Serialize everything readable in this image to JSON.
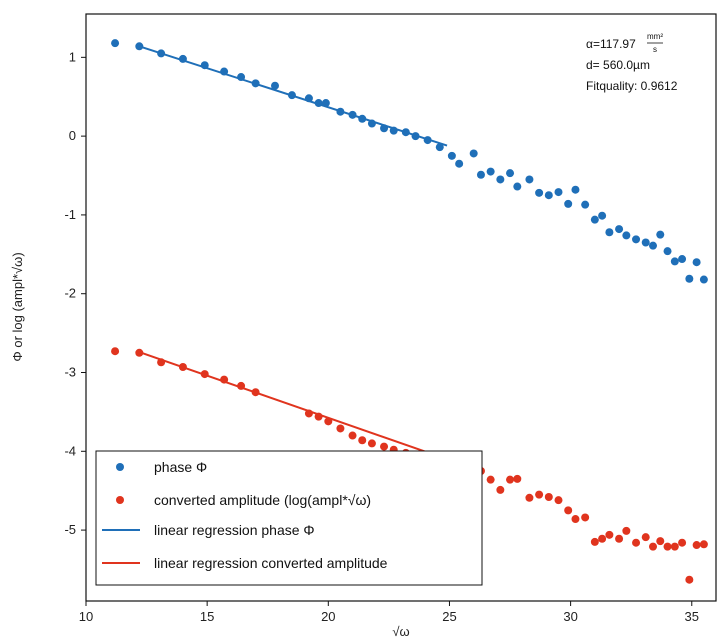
{
  "chart_data": {
    "type": "scatter",
    "xlabel": "√ω",
    "ylabel": "Φ or log (ampl*√ω)",
    "xlim": [
      10,
      36
    ],
    "ylim": [
      -5.9,
      1.55
    ],
    "x_ticks": [
      10,
      15,
      20,
      25,
      30,
      35
    ],
    "y_ticks": [
      1,
      0,
      -1,
      -2,
      -3,
      -4,
      -5
    ],
    "grid": false,
    "legend_position": "bottom-left",
    "annotation": {
      "alpha_prefix": "α=117.97",
      "alpha_unit_num": "mm²",
      "alpha_unit_den": "s",
      "thickness": "d= 560.0µm",
      "fit_quality": "Fitquality: 0.9612"
    },
    "colors": {
      "phase": "#1f6fb8",
      "amplitude": "#e0341e"
    },
    "series": [
      {
        "name": "phase Φ",
        "kind": "points",
        "color": "#1f6fb8",
        "x": [
          11.2,
          12.2,
          13.1,
          14.0,
          14.9,
          15.7,
          16.4,
          17.0,
          17.8,
          18.5,
          19.2,
          19.6,
          19.9,
          20.5,
          21.0,
          21.4,
          21.8,
          22.3,
          22.7,
          23.2,
          23.6,
          24.1,
          24.6,
          25.1,
          25.4,
          26.0,
          26.3,
          26.7,
          27.1,
          27.5,
          27.8,
          28.3,
          28.7,
          29.1,
          29.5,
          29.9,
          30.2,
          30.6,
          31.0,
          31.3,
          31.6,
          32.0,
          32.3,
          32.7,
          33.1,
          33.4,
          33.7,
          34.0,
          34.3,
          34.6,
          34.9,
          35.2,
          35.5
        ],
        "y": [
          1.18,
          1.14,
          1.05,
          0.98,
          0.9,
          0.82,
          0.75,
          0.67,
          0.64,
          0.52,
          0.48,
          0.42,
          0.42,
          0.31,
          0.27,
          0.22,
          0.16,
          0.1,
          0.07,
          0.05,
          0.0,
          -0.05,
          -0.14,
          -0.25,
          -0.35,
          -0.22,
          -0.49,
          -0.45,
          -0.55,
          -0.47,
          -0.64,
          -0.55,
          -0.72,
          -0.75,
          -0.71,
          -0.86,
          -0.68,
          -0.87,
          -1.06,
          -1.01,
          -1.22,
          -1.18,
          -1.26,
          -1.31,
          -1.35,
          -1.39,
          -1.25,
          -1.46,
          -1.59,
          -1.56,
          -1.81,
          -1.6,
          -1.82
        ]
      },
      {
        "name": "converted amplitude (log(ampl*√ω)",
        "kind": "points",
        "color": "#e0341e",
        "x": [
          11.2,
          12.2,
          13.1,
          14.0,
          14.9,
          15.7,
          16.4,
          17.0,
          19.2,
          19.6,
          20.0,
          20.5,
          21.0,
          21.4,
          21.8,
          22.3,
          22.7,
          23.2,
          23.6,
          24.1,
          24.6,
          25.1,
          25.4,
          26.0,
          26.3,
          26.7,
          27.1,
          27.5,
          27.8,
          28.3,
          28.7,
          29.1,
          29.5,
          29.9,
          30.2,
          30.6,
          31.0,
          31.3,
          31.6,
          32.0,
          32.3,
          32.7,
          33.1,
          33.4,
          33.7,
          34.0,
          34.3,
          34.6,
          34.9,
          35.2,
          35.5
        ],
        "y": [
          -2.73,
          -2.75,
          -2.87,
          -2.93,
          -3.02,
          -3.09,
          -3.17,
          -3.25,
          -3.52,
          -3.56,
          -3.62,
          -3.71,
          -3.8,
          -3.86,
          -3.9,
          -3.94,
          -3.98,
          -4.02,
          -4.08,
          -4.12,
          -4.1,
          -4.11,
          -4.21,
          -4.21,
          -4.25,
          -4.36,
          -4.49,
          -4.36,
          -4.35,
          -4.59,
          -4.55,
          -4.58,
          -4.62,
          -4.75,
          -4.86,
          -4.84,
          -5.15,
          -5.11,
          -5.06,
          -5.11,
          -5.01,
          -5.16,
          -5.09,
          -5.21,
          -5.14,
          -5.21,
          -5.21,
          -5.16,
          -5.63,
          -5.19,
          -5.18
        ]
      },
      {
        "name": "linear regression phase Φ",
        "kind": "line",
        "color": "#1f6fb8",
        "x": [
          12.2,
          24.9
        ],
        "y": [
          1.14,
          -0.12
        ]
      },
      {
        "name": "linear regression converted amplitude",
        "kind": "line",
        "color": "#e0341e",
        "x": [
          12.2,
          24.9
        ],
        "y": [
          -2.74,
          -4.1
        ]
      }
    ]
  }
}
